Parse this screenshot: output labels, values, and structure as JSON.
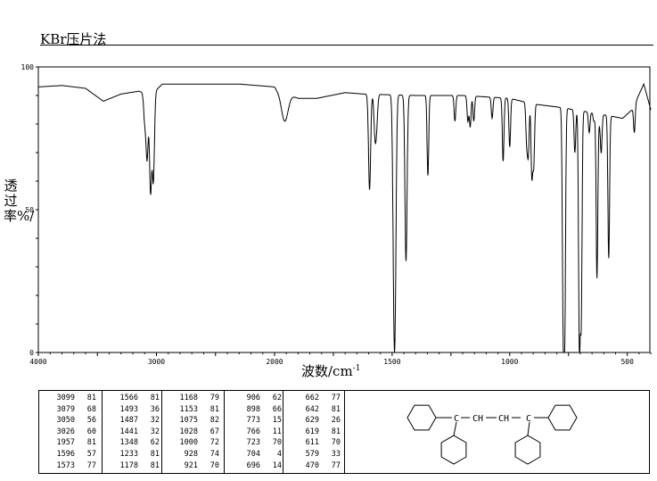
{
  "title": "KBr压片法",
  "chart_data": {
    "type": "line",
    "title": "KBr压片法",
    "xlabel": "波数/cm",
    "xlabel_sup": "-1",
    "ylabel": "透过率%/",
    "xlim": [
      4000,
      400
    ],
    "x_scale": "piecewise-linear (4000-2000 compressed, 2000-400 expanded)",
    "ylim": [
      0,
      100
    ],
    "x_ticks": [
      "4000",
      "3000",
      "2000",
      "1500",
      "1000",
      "500"
    ],
    "x_tick_values": [
      4000,
      3000,
      2000,
      1500,
      1000,
      500
    ],
    "y_ticks": [
      "0",
      "50",
      "100"
    ],
    "y_tick_values": [
      0,
      50,
      100
    ],
    "grid": false,
    "line_color": "#000000",
    "baseline": [
      [
        4000,
        93
      ],
      [
        3800,
        93.5
      ],
      [
        3600,
        92.5
      ],
      [
        3450,
        88
      ],
      [
        3300,
        90.5
      ],
      [
        3150,
        91.5
      ],
      [
        3110,
        91
      ],
      [
        3000,
        92
      ],
      [
        2950,
        94
      ],
      [
        2300,
        94
      ],
      [
        2000,
        93
      ],
      [
        1990,
        92
      ],
      [
        1900,
        89
      ],
      [
        1820,
        89
      ],
      [
        1700,
        91
      ],
      [
        1620,
        90.5
      ],
      [
        1400,
        90
      ],
      [
        1200,
        90
      ],
      [
        1100,
        89.5
      ],
      [
        1000,
        89
      ],
      [
        900,
        87
      ],
      [
        800,
        86
      ],
      [
        650,
        84
      ],
      [
        520,
        82
      ],
      [
        480,
        85
      ],
      [
        430,
        94
      ],
      [
        400,
        85
      ]
    ],
    "peaks": [
      {
        "wavenumber": 3099,
        "transmittance": 81
      },
      {
        "wavenumber": 3079,
        "transmittance": 68
      },
      {
        "wavenumber": 3050,
        "transmittance": 56
      },
      {
        "wavenumber": 3026,
        "transmittance": 60
      },
      {
        "wavenumber": 1957,
        "transmittance": 81
      },
      {
        "wavenumber": 1596,
        "transmittance": 57
      },
      {
        "wavenumber": 1573,
        "transmittance": 77
      },
      {
        "wavenumber": 1566,
        "transmittance": 81
      },
      {
        "wavenumber": 1493,
        "transmittance": 36
      },
      {
        "wavenumber": 1487,
        "transmittance": 32
      },
      {
        "wavenumber": 1441,
        "transmittance": 32
      },
      {
        "wavenumber": 1348,
        "transmittance": 62
      },
      {
        "wavenumber": 1233,
        "transmittance": 81
      },
      {
        "wavenumber": 1178,
        "transmittance": 81
      },
      {
        "wavenumber": 1168,
        "transmittance": 79
      },
      {
        "wavenumber": 1153,
        "transmittance": 81
      },
      {
        "wavenumber": 1075,
        "transmittance": 82
      },
      {
        "wavenumber": 1028,
        "transmittance": 67
      },
      {
        "wavenumber": 1000,
        "transmittance": 72
      },
      {
        "wavenumber": 928,
        "transmittance": 74
      },
      {
        "wavenumber": 921,
        "transmittance": 70
      },
      {
        "wavenumber": 906,
        "transmittance": 62
      },
      {
        "wavenumber": 898,
        "transmittance": 66
      },
      {
        "wavenumber": 773,
        "transmittance": 15
      },
      {
        "wavenumber": 766,
        "transmittance": 11
      },
      {
        "wavenumber": 723,
        "transmittance": 70
      },
      {
        "wavenumber": 704,
        "transmittance": 4
      },
      {
        "wavenumber": 696,
        "transmittance": 14
      },
      {
        "wavenumber": 662,
        "transmittance": 77
      },
      {
        "wavenumber": 642,
        "transmittance": 81
      },
      {
        "wavenumber": 629,
        "transmittance": 26
      },
      {
        "wavenumber": 619,
        "transmittance": 81
      },
      {
        "wavenumber": 611,
        "transmittance": 70
      },
      {
        "wavenumber": 579,
        "transmittance": 33
      },
      {
        "wavenumber": 470,
        "transmittance": 77
      }
    ]
  },
  "table": {
    "columns": [
      [
        [
          "3099",
          "81"
        ],
        [
          "3079",
          "68"
        ],
        [
          "3050",
          "56"
        ],
        [
          "3026",
          "60"
        ],
        [
          "1957",
          "81"
        ],
        [
          "1596",
          "57"
        ],
        [
          "1573",
          "77"
        ]
      ],
      [
        [
          "1566",
          "81"
        ],
        [
          "1493",
          "36"
        ],
        [
          "1487",
          "32"
        ],
        [
          "1441",
          "32"
        ],
        [
          "1348",
          "62"
        ],
        [
          "1233",
          "81"
        ],
        [
          "1178",
          "81"
        ]
      ],
      [
        [
          "1168",
          "79"
        ],
        [
          "1153",
          "81"
        ],
        [
          "1075",
          "82"
        ],
        [
          "1028",
          "67"
        ],
        [
          "1000",
          "72"
        ],
        [
          "928",
          "74"
        ],
        [
          "921",
          "70"
        ]
      ],
      [
        [
          "906",
          "62"
        ],
        [
          "898",
          "66"
        ],
        [
          "773",
          "15"
        ],
        [
          "766",
          "11"
        ],
        [
          "723",
          "70"
        ],
        [
          "704",
          "4"
        ],
        [
          "696",
          "14"
        ]
      ],
      [
        [
          "662",
          "77"
        ],
        [
          "642",
          "81"
        ],
        [
          "629",
          "26"
        ],
        [
          "619",
          "81"
        ],
        [
          "611",
          "70"
        ],
        [
          "579",
          "33"
        ],
        [
          "470",
          "77"
        ]
      ]
    ]
  },
  "structure": {
    "labels": [
      "C",
      "CH",
      "CH",
      "C"
    ]
  }
}
